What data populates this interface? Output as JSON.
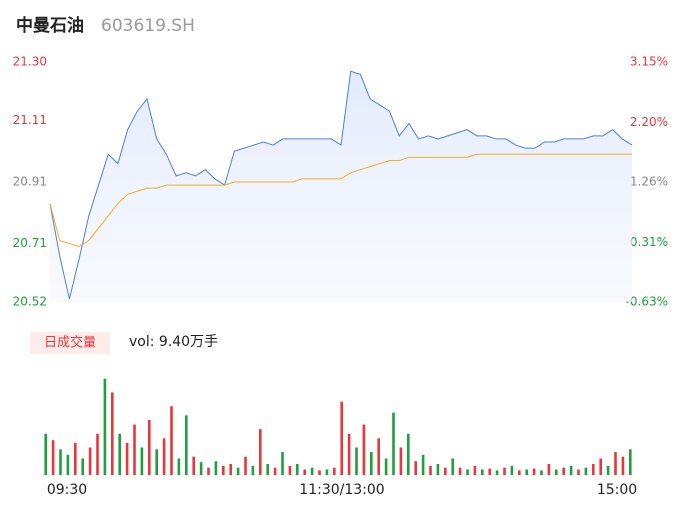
{
  "header": {
    "title": "中曼石油",
    "code": "603619.SH"
  },
  "chart_data": [
    {
      "type": "line",
      "xlim": [
        0,
        240
      ],
      "xticks": [
        {
          "value": 0,
          "label": "09:30"
        },
        {
          "value": 120,
          "label": "11:30/13:00"
        },
        {
          "value": 240,
          "label": "15:00"
        }
      ],
      "ylim": [
        20.52,
        21.3
      ],
      "yticks": [
        {
          "value": 20.52,
          "label": "20.52"
        },
        {
          "value": 20.71,
          "label": "20.71"
        },
        {
          "value": 20.91,
          "label": "20.91"
        },
        {
          "value": 21.11,
          "label": "21.11"
        },
        {
          "value": 21.3,
          "label": "21.30"
        }
      ],
      "ytick_colors": [
        "#1ea03c",
        "#1ea03c",
        "#888888",
        "#e8363b",
        "#e8363b"
      ],
      "y2lim": [
        -0.63,
        3.15
      ],
      "y2ticks": [
        {
          "value": -0.63,
          "label": "-0.63%"
        },
        {
          "value": 0.31,
          "label": "0.31%"
        },
        {
          "value": 1.26,
          "label": "1.26%"
        },
        {
          "value": 2.2,
          "label": "2.20%"
        },
        {
          "value": 3.15,
          "label": "3.15%"
        }
      ],
      "y2tick_colors": [
        "#1ea03c",
        "#1ea03c",
        "#888888",
        "#e8363b",
        "#e8363b"
      ],
      "x": [
        0,
        4,
        8,
        12,
        16,
        20,
        24,
        28,
        32,
        36,
        40,
        44,
        48,
        52,
        56,
        60,
        64,
        68,
        72,
        76,
        80,
        84,
        88,
        92,
        96,
        100,
        104,
        108,
        112,
        116,
        120,
        124,
        128,
        132,
        136,
        140,
        144,
        148,
        152,
        156,
        160,
        164,
        168,
        172,
        176,
        180,
        184,
        188,
        192,
        196,
        200,
        204,
        208,
        212,
        216,
        220,
        224,
        228,
        232,
        236,
        240
      ],
      "series": [
        {
          "name": "price",
          "color": "#4d7fe0",
          "values": [
            20.84,
            20.67,
            20.53,
            20.66,
            20.8,
            20.9,
            21.0,
            20.97,
            21.08,
            21.14,
            21.18,
            21.05,
            21.0,
            20.93,
            20.94,
            20.93,
            20.95,
            20.92,
            20.9,
            21.01,
            21.02,
            21.03,
            21.04,
            21.03,
            21.05,
            21.05,
            21.05,
            21.05,
            21.05,
            21.05,
            21.03,
            21.27,
            21.26,
            21.18,
            21.16,
            21.14,
            21.06,
            21.1,
            21.05,
            21.06,
            21.05,
            21.06,
            21.07,
            21.08,
            21.06,
            21.06,
            21.05,
            21.05,
            21.03,
            21.02,
            21.02,
            21.04,
            21.04,
            21.05,
            21.05,
            21.05,
            21.06,
            21.06,
            21.08,
            21.05,
            21.03
          ]
        },
        {
          "name": "average",
          "color": "#f0b020",
          "values": [
            20.84,
            20.72,
            20.71,
            20.7,
            20.72,
            20.76,
            20.8,
            20.84,
            20.87,
            20.88,
            20.89,
            20.89,
            20.9,
            20.9,
            20.9,
            20.9,
            20.9,
            20.9,
            20.9,
            20.91,
            20.91,
            20.91,
            20.91,
            20.91,
            20.91,
            20.91,
            20.92,
            20.92,
            20.92,
            20.92,
            20.92,
            20.94,
            20.95,
            20.96,
            20.97,
            20.98,
            20.98,
            20.99,
            20.99,
            20.99,
            20.99,
            20.99,
            20.99,
            20.99,
            21.0,
            21.0,
            21.0,
            21.0,
            21.0,
            21.0,
            21.0,
            21.0,
            21.0,
            21.0,
            21.0,
            21.0,
            21.0,
            21.0,
            21.0,
            21.0,
            21.0
          ]
        }
      ]
    },
    {
      "type": "volume",
      "legend": "日成交量",
      "label": "vol: 9.40万手",
      "xlim": [
        0,
        240
      ],
      "ylim": [
        0,
        3500
      ],
      "x": [
        1.5,
        4.5,
        7.5,
        10.5,
        13.5,
        16.5,
        19.5,
        22.5,
        25.5,
        28.5,
        31.5,
        34.5,
        37.5,
        40.5,
        43.5,
        46.5,
        49.5,
        52.5,
        55.5,
        58.5,
        61.5,
        64.5,
        67.5,
        70.5,
        73.5,
        76.5,
        79.5,
        82.5,
        85.5,
        88.5,
        91.5,
        94.5,
        97.5,
        100.5,
        103.5,
        106.5,
        109.5,
        112.5,
        115.5,
        118.5,
        121.5,
        124.5,
        127.5,
        130.5,
        133.5,
        136.5,
        139.5,
        142.5,
        145.5,
        148.5,
        151.5,
        154.5,
        157.5,
        160.5,
        163.5,
        166.5,
        169.5,
        172.5,
        175.5,
        178.5,
        181.5,
        184.5,
        187.5,
        190.5,
        193.5,
        196.5,
        199.5,
        202.5,
        205.5,
        208.5,
        211.5,
        214.5,
        217.5,
        220.5,
        223.5,
        226.5,
        229.5,
        232.5,
        235.5,
        238.5
      ],
      "values": [
        1350,
        1140,
        840,
        660,
        1050,
        540,
        900,
        1350,
        3150,
        2700,
        1350,
        1050,
        1650,
        900,
        1800,
        840,
        1200,
        2250,
        540,
        1950,
        600,
        420,
        240,
        450,
        300,
        360,
        240,
        600,
        300,
        1500,
        360,
        240,
        750,
        300,
        360,
        180,
        240,
        150,
        180,
        240,
        2400,
        1350,
        900,
        1650,
        750,
        1200,
        540,
        2040,
        900,
        1350,
        450,
        660,
        300,
        360,
        240,
        540,
        240,
        180,
        300,
        180,
        210,
        150,
        240,
        300,
        150,
        180,
        210,
        150,
        360,
        180,
        240,
        300,
        180,
        240,
        360,
        540,
        300,
        750,
        600,
        840
      ],
      "colors": [
        "#1ea03c",
        "#e8363b",
        "#1ea03c",
        "#1ea03c",
        "#e8363b",
        "#1ea03c",
        "#e8363b",
        "#e8363b",
        "#1ea03c",
        "#e8363b",
        "#1ea03c",
        "#e8363b",
        "#e8363b",
        "#1ea03c",
        "#e8363b",
        "#1ea03c",
        "#e8363b",
        "#e8363b",
        "#1ea03c",
        "#1ea03c",
        "#e8363b",
        "#1ea03c",
        "#e8363b",
        "#1ea03c",
        "#e8363b",
        "#e8363b",
        "#1ea03c",
        "#e8363b",
        "#1ea03c",
        "#e8363b",
        "#1ea03c",
        "#e8363b",
        "#1ea03c",
        "#e8363b",
        "#1ea03c",
        "#e8363b",
        "#1ea03c",
        "#e8363b",
        "#1ea03c",
        "#e8363b",
        "#e8363b",
        "#e8363b",
        "#1ea03c",
        "#e8363b",
        "#1ea03c",
        "#e8363b",
        "#1ea03c",
        "#1ea03c",
        "#e8363b",
        "#1ea03c",
        "#e8363b",
        "#1ea03c",
        "#e8363b",
        "#1ea03c",
        "#e8363b",
        "#1ea03c",
        "#e8363b",
        "#1ea03c",
        "#e8363b",
        "#1ea03c",
        "#e8363b",
        "#1ea03c",
        "#e8363b",
        "#1ea03c",
        "#e8363b",
        "#1ea03c",
        "#e8363b",
        "#1ea03c",
        "#e8363b",
        "#1ea03c",
        "#e8363b",
        "#1ea03c",
        "#e8363b",
        "#1ea03c",
        "#e8363b",
        "#e8363b",
        "#1ea03c",
        "#e8363b",
        "#e8363b",
        "#1ea03c"
      ]
    }
  ]
}
